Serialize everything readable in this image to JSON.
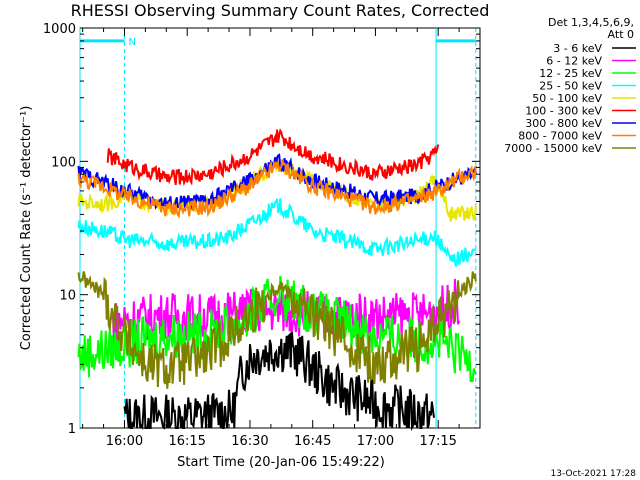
{
  "chart_data": {
    "type": "line",
    "title": "RHESSI Observing Summary Count Rates, Corrected",
    "xlabel": "Start Time (20-Jan-06 15:49:22)",
    "ylabel": "Corrected Count Rate (s⁻¹ detector⁻¹)",
    "y_scale": "log",
    "ylim": [
      1,
      1000
    ],
    "y_ticks": [
      {
        "value": 1,
        "label": "1"
      },
      {
        "value": 10,
        "label": "10"
      },
      {
        "value": 100,
        "label": "100"
      },
      {
        "value": 1000,
        "label": "1000"
      }
    ],
    "xlim": [
      "15:49:22",
      "17:25:00"
    ],
    "x_ticks": [
      "16:00",
      "16:15",
      "16:30",
      "16:45",
      "17:00",
      "17:15"
    ],
    "legend_header": [
      "Det 1,3,4,5,6,9,",
      "Att 0"
    ],
    "legend_position": "right",
    "grid": false,
    "flags": {
      "label": "N",
      "night_intervals": [
        [
          "15:49:22",
          "16:00:00"
        ],
        [
          "17:14:30",
          "17:24:00"
        ]
      ],
      "level": 800
    },
    "series": [
      {
        "name": "3 - 6 keV",
        "color": "#000000",
        "t": [
          "16:00",
          "16:15",
          "16:26",
          "16:28",
          "16:30",
          "16:37",
          "16:42",
          "16:45",
          "16:50",
          "17:00",
          "17:10",
          "17:14"
        ],
        "values": [
          1.2,
          1.2,
          1.3,
          2.6,
          3.4,
          4.0,
          3.5,
          2.8,
          2.0,
          1.5,
          1.3,
          1.2
        ]
      },
      {
        "name": "6 - 12 keV",
        "color": "#ff00ff",
        "t": [
          "15:57",
          "16:00",
          "16:10",
          "16:20",
          "16:30",
          "16:37",
          "16:45",
          "17:00",
          "17:10",
          "17:15",
          "17:20"
        ],
        "values": [
          6.0,
          6.5,
          7.0,
          6.8,
          7.5,
          7.8,
          7.0,
          6.8,
          7.0,
          7.5,
          9.0
        ]
      },
      {
        "name": "12 - 25 keV",
        "color": "#00ff00",
        "t": [
          "15:49",
          "15:55",
          "16:00",
          "16:10",
          "16:20",
          "16:30",
          "16:37",
          "16:45",
          "17:00",
          "17:10",
          "17:15",
          "17:20",
          "17:24"
        ],
        "values": [
          3.5,
          3.8,
          4.2,
          5.0,
          5.0,
          7.0,
          10.0,
          7.5,
          5.0,
          4.5,
          4.5,
          3.5,
          3.2
        ]
      },
      {
        "name": "25 - 50 keV",
        "color": "#00ffff",
        "t": [
          "15:49",
          "15:55",
          "16:00",
          "16:10",
          "16:20",
          "16:25",
          "16:30",
          "16:37",
          "16:45",
          "17:00",
          "17:10",
          "17:14",
          "17:18",
          "17:24"
        ],
        "values": [
          33,
          30,
          26,
          24,
          25,
          27,
          34,
          47,
          30,
          22,
          25,
          28,
          18,
          21
        ]
      },
      {
        "name": "50 - 100 keV",
        "color": "#e6e600",
        "t": [
          "15:49",
          "15:56",
          "16:00",
          "16:10",
          "16:20",
          "16:30",
          "16:37",
          "16:45",
          "17:00",
          "17:10",
          "17:14",
          "17:18",
          "17:24"
        ],
        "values": [
          50,
          48,
          55,
          45,
          48,
          70,
          95,
          70,
          47,
          55,
          75,
          40,
          42
        ]
      },
      {
        "name": "100 - 300 keV",
        "color": "#ff0000",
        "t": [
          "15:56",
          "16:00",
          "16:10",
          "16:20",
          "16:30",
          "16:37",
          "16:45",
          "17:00",
          "17:10",
          "17:15"
        ],
        "values": [
          110,
          95,
          75,
          80,
          110,
          155,
          110,
          80,
          95,
          120
        ]
      },
      {
        "name": "300 - 800 keV",
        "color": "#0000ff",
        "t": [
          "15:49",
          "15:55",
          "16:00",
          "16:10",
          "16:20",
          "16:30",
          "16:37",
          "16:45",
          "17:00",
          "17:10",
          "17:15",
          "17:20",
          "17:24"
        ],
        "values": [
          82,
          70,
          60,
          48,
          50,
          72,
          100,
          72,
          52,
          55,
          65,
          75,
          80
        ]
      },
      {
        "name": "800 - 7000 keV",
        "color": "#ff8000",
        "t": [
          "15:49",
          "15:55",
          "16:00",
          "16:10",
          "16:20",
          "16:30",
          "16:37",
          "16:45",
          "17:00",
          "17:10",
          "17:15",
          "17:20",
          "17:24"
        ],
        "values": [
          75,
          65,
          55,
          44,
          45,
          65,
          95,
          65,
          45,
          52,
          60,
          75,
          85
        ]
      },
      {
        "name": "7000 - 15000 keV",
        "color": "#808000",
        "t": [
          "15:49",
          "15:55",
          "16:00",
          "16:05",
          "16:10",
          "16:20",
          "16:30",
          "16:37",
          "16:45",
          "17:00",
          "17:10",
          "17:15",
          "17:20",
          "17:24"
        ],
        "values": [
          14,
          10,
          5.0,
          3.0,
          2.8,
          3.5,
          7.0,
          12.0,
          7.0,
          3.0,
          4.0,
          6.0,
          10.0,
          14.0
        ]
      }
    ]
  },
  "footer": {
    "date": "13-Oct-2021 17:28"
  }
}
